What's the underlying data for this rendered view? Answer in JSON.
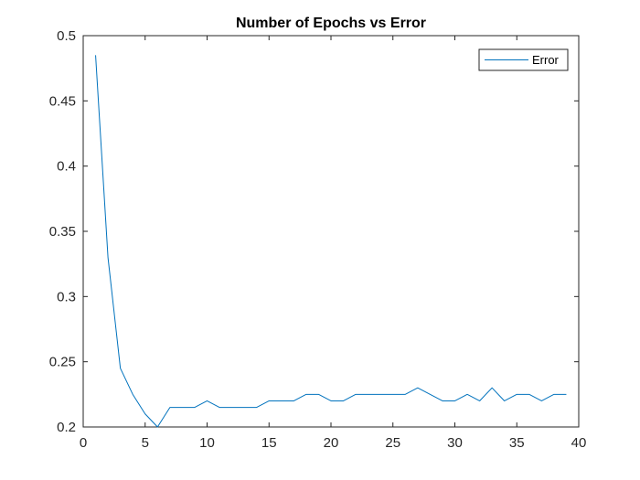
{
  "chart_data": {
    "type": "line",
    "title": "Number of Epochs vs Error",
    "xlabel": "",
    "ylabel": "",
    "xlim": [
      0,
      40
    ],
    "ylim": [
      0.2,
      0.5
    ],
    "x_ticks": [
      0,
      5,
      10,
      15,
      20,
      25,
      30,
      35,
      40
    ],
    "y_ticks": [
      0.2,
      0.25,
      0.3,
      0.35,
      0.4,
      0.45,
      0.5
    ],
    "x_tick_labels": [
      "0",
      "5",
      "10",
      "15",
      "20",
      "25",
      "30",
      "35",
      "40"
    ],
    "y_tick_labels": [
      "0.2",
      "0.25",
      "0.3",
      "0.35",
      "0.4",
      "0.45",
      "0.5"
    ],
    "grid": false,
    "legend_position": "top-right",
    "series": [
      {
        "name": "Error",
        "color": "#0072BD",
        "x": [
          1,
          2,
          3,
          4,
          5,
          6,
          7,
          8,
          9,
          10,
          11,
          12,
          13,
          14,
          15,
          16,
          17,
          18,
          19,
          20,
          21,
          22,
          23,
          24,
          25,
          26,
          27,
          28,
          29,
          30,
          31,
          32,
          33,
          34,
          35,
          36,
          37,
          38,
          39
        ],
        "y": [
          0.485,
          0.33,
          0.245,
          0.225,
          0.21,
          0.2,
          0.215,
          0.215,
          0.215,
          0.22,
          0.215,
          0.215,
          0.215,
          0.215,
          0.22,
          0.22,
          0.22,
          0.225,
          0.225,
          0.22,
          0.22,
          0.225,
          0.225,
          0.225,
          0.225,
          0.225,
          0.23,
          0.225,
          0.22,
          0.22,
          0.225,
          0.22,
          0.23,
          0.22,
          0.225,
          0.225,
          0.22,
          0.225,
          0.225
        ]
      }
    ]
  }
}
